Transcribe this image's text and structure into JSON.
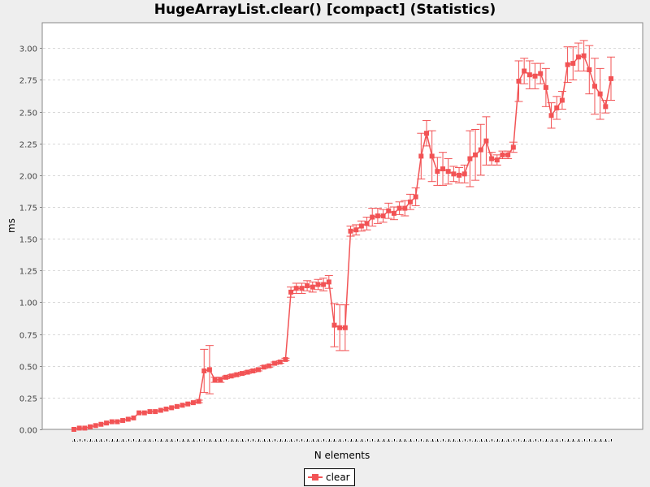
{
  "colors": {
    "page_background": "#eeeeee",
    "plot_background": "#ffffff",
    "series": "#f25355",
    "grid": "#d9d9d9",
    "axis": "#888888"
  },
  "chart_data": {
    "type": "line",
    "title": "HugeArrayList.clear() [compact] (Statistics)",
    "xlabel": "N elements",
    "ylabel": "ms",
    "ylim": [
      0,
      3.2
    ],
    "yticks": [
      "0.00",
      "0.25",
      "0.50",
      "0.75",
      "1.00",
      "1.25",
      "1.50",
      "1.75",
      "2.00",
      "2.25",
      "2.50",
      "2.75",
      "3.00"
    ],
    "grid": true,
    "error_bars": true,
    "legend_position": "bottom-center",
    "x_tick_labels_visible": false,
    "series": [
      {
        "name": "clear",
        "values": [
          0.0,
          0.01,
          0.01,
          0.02,
          0.03,
          0.04,
          0.05,
          0.06,
          0.06,
          0.07,
          0.08,
          0.09,
          0.13,
          0.13,
          0.14,
          0.14,
          0.15,
          0.16,
          0.17,
          0.18,
          0.19,
          0.2,
          0.21,
          0.22,
          0.46,
          0.47,
          0.39,
          0.39,
          0.41,
          0.42,
          0.43,
          0.44,
          0.45,
          0.46,
          0.47,
          0.49,
          0.5,
          0.52,
          0.53,
          0.55,
          1.08,
          1.11,
          1.11,
          1.13,
          1.12,
          1.14,
          1.14,
          1.16,
          0.82,
          0.8,
          0.8,
          1.56,
          1.57,
          1.6,
          1.62,
          1.67,
          1.68,
          1.68,
          1.72,
          1.7,
          1.74,
          1.74,
          1.79,
          1.83,
          2.15,
          2.33,
          2.15,
          2.03,
          2.05,
          2.03,
          2.01,
          2.0,
          2.01,
          2.13,
          2.16,
          2.2,
          2.27,
          2.13,
          2.12,
          2.16,
          2.16,
          2.22,
          2.74,
          2.82,
          2.79,
          2.78,
          2.8,
          2.69,
          2.47,
          2.53,
          2.59,
          2.87,
          2.88,
          2.93,
          2.94,
          2.83,
          2.7,
          2.64,
          2.54,
          2.76
        ],
        "errors": [
          0.0,
          0.0,
          0.0,
          0.0,
          0.0,
          0.0,
          0.0,
          0.0,
          0.0,
          0.0,
          0.0,
          0.0,
          0.0,
          0.0,
          0.0,
          0.0,
          0.0,
          0.0,
          0.0,
          0.0,
          0.0,
          0.0,
          0.0,
          0.01,
          0.17,
          0.19,
          0.02,
          0.02,
          0.01,
          0.01,
          0.01,
          0.01,
          0.01,
          0.01,
          0.01,
          0.01,
          0.01,
          0.01,
          0.01,
          0.01,
          0.04,
          0.04,
          0.04,
          0.04,
          0.04,
          0.04,
          0.05,
          0.05,
          0.17,
          0.18,
          0.18,
          0.04,
          0.04,
          0.04,
          0.05,
          0.07,
          0.06,
          0.05,
          0.06,
          0.05,
          0.05,
          0.06,
          0.06,
          0.07,
          0.18,
          0.1,
          0.2,
          0.11,
          0.13,
          0.1,
          0.06,
          0.06,
          0.07,
          0.22,
          0.2,
          0.2,
          0.19,
          0.05,
          0.04,
          0.03,
          0.03,
          0.04,
          0.16,
          0.1,
          0.11,
          0.1,
          0.08,
          0.15,
          0.1,
          0.09,
          0.07,
          0.14,
          0.13,
          0.11,
          0.12,
          0.19,
          0.22,
          0.2,
          0.05,
          0.17
        ]
      }
    ]
  }
}
